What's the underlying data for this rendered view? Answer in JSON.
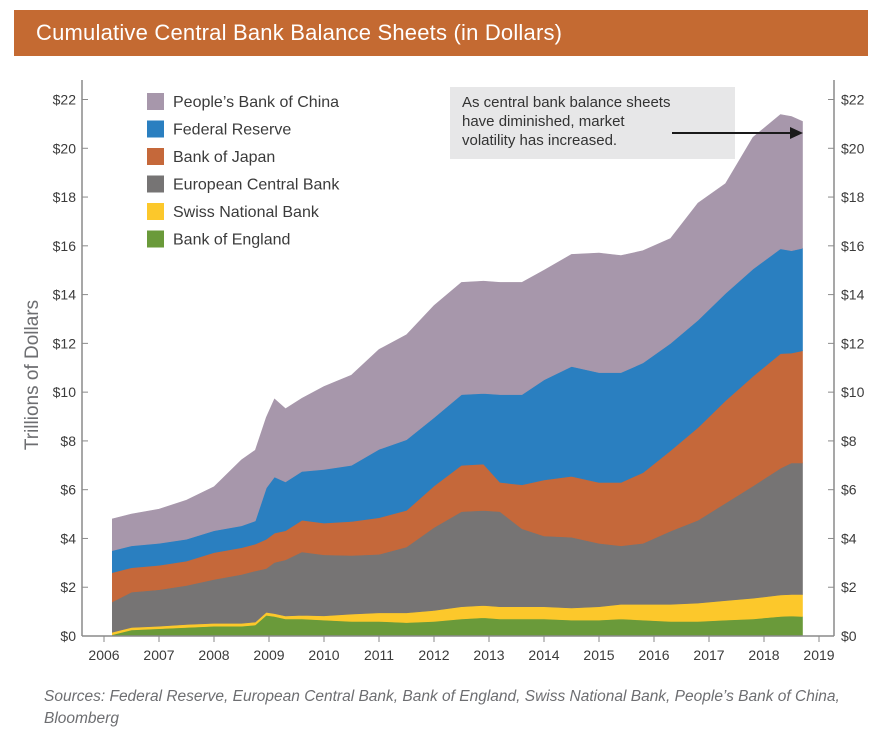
{
  "header": {
    "title": "Cumulative Central Bank Balance Sheets (in Dollars)"
  },
  "footer": {
    "sources": "Sources: Federal Reserve, European Central Bank, Bank of England, Swiss National Bank, People’s Bank of China, Bloomberg"
  },
  "colors": {
    "title_bar": "#c46a32",
    "pboc": "#a797ab",
    "fed": "#2a7fc0",
    "boj": "#c5683a",
    "ecb": "#767474",
    "snb": "#fcc82b",
    "boe": "#6a9a3a"
  },
  "chart_data": {
    "type": "area",
    "stacked": true,
    "title": "Cumulative Central Bank Balance Sheets (in Dollars)",
    "ylabel": "Trillions of Dollars",
    "xlabel": "",
    "xlim": [
      2006,
      2019
    ],
    "ylim": [
      0,
      22.8
    ],
    "legend_position": "top-left",
    "x_ticks": [
      "2006",
      "2007",
      "2008",
      "2009",
      "2010",
      "2011",
      "2012",
      "2013",
      "2014",
      "2015",
      "2016",
      "2017",
      "2018",
      "2019"
    ],
    "y_ticks_left": [
      "$0",
      "$2",
      "$4",
      "$6",
      "$8",
      "$10",
      "$12",
      "$14",
      "$16",
      "$18",
      "$20",
      "$22"
    ],
    "y_ticks_right": [
      "$0",
      "$2",
      "$4",
      "$6",
      "$8",
      "$10",
      "$12",
      "$14",
      "$16",
      "$18",
      "$20",
      "$22"
    ],
    "x": [
      2006.15,
      2006.5,
      2007,
      2007.5,
      2008,
      2008.5,
      2008.75,
      2008.95,
      2009.1,
      2009.3,
      2009.6,
      2010,
      2010.5,
      2011,
      2011.5,
      2012,
      2012.5,
      2012.9,
      2013.2,
      2013.6,
      2014,
      2014.5,
      2015,
      2015.4,
      2015.8,
      2016.3,
      2016.8,
      2017.3,
      2017.8,
      2018.3,
      2018.5,
      2018.7
    ],
    "series": [
      {
        "name": "Bank of England",
        "values": [
          0.05,
          0.25,
          0.3,
          0.35,
          0.4,
          0.4,
          0.45,
          0.85,
          0.8,
          0.7,
          0.7,
          0.65,
          0.6,
          0.6,
          0.55,
          0.6,
          0.7,
          0.75,
          0.7,
          0.7,
          0.7,
          0.65,
          0.65,
          0.7,
          0.65,
          0.6,
          0.6,
          0.65,
          0.7,
          0.8,
          0.82,
          0.8
        ]
      },
      {
        "name": "Swiss National Bank",
        "values": [
          0.1,
          0.1,
          0.1,
          0.12,
          0.12,
          0.12,
          0.12,
          0.12,
          0.12,
          0.12,
          0.15,
          0.18,
          0.3,
          0.35,
          0.4,
          0.45,
          0.5,
          0.5,
          0.5,
          0.5,
          0.5,
          0.5,
          0.55,
          0.6,
          0.65,
          0.7,
          0.75,
          0.8,
          0.85,
          0.88,
          0.88,
          0.9
        ]
      },
      {
        "name": "European Central Bank",
        "values": [
          1.25,
          1.45,
          1.5,
          1.6,
          1.8,
          2.0,
          2.1,
          1.8,
          2.1,
          2.3,
          2.6,
          2.5,
          2.4,
          2.4,
          2.7,
          3.4,
          3.9,
          3.9,
          3.9,
          3.2,
          2.9,
          2.9,
          2.6,
          2.4,
          2.5,
          3.0,
          3.4,
          4.0,
          4.6,
          5.2,
          5.4,
          5.4
        ]
      },
      {
        "name": "Bank of Japan",
        "values": [
          1.2,
          1.0,
          1.0,
          1.0,
          1.1,
          1.1,
          1.1,
          1.2,
          1.2,
          1.2,
          1.3,
          1.3,
          1.4,
          1.5,
          1.5,
          1.7,
          1.9,
          1.9,
          1.2,
          1.8,
          2.3,
          2.5,
          2.5,
          2.6,
          2.9,
          3.3,
          3.8,
          4.2,
          4.5,
          4.7,
          4.5,
          4.6
        ]
      },
      {
        "name": "Federal Reserve",
        "values": [
          0.9,
          0.9,
          0.9,
          0.9,
          0.9,
          0.9,
          0.95,
          2.1,
          2.3,
          2.0,
          2.0,
          2.2,
          2.3,
          2.8,
          2.9,
          2.8,
          2.9,
          2.9,
          3.6,
          3.7,
          4.1,
          4.5,
          4.5,
          4.5,
          4.5,
          4.4,
          4.4,
          4.4,
          4.4,
          4.3,
          4.2,
          4.2
        ]
      },
      {
        "name": "People’s Bank of China",
        "values": [
          1.3,
          1.3,
          1.4,
          1.6,
          1.8,
          2.7,
          2.9,
          2.9,
          3.2,
          3.0,
          3.0,
          3.4,
          3.7,
          4.1,
          4.3,
          4.6,
          4.6,
          4.6,
          4.6,
          4.6,
          4.5,
          4.6,
          4.9,
          4.8,
          4.6,
          4.3,
          4.8,
          4.5,
          5.4,
          5.5,
          5.5,
          5.2
        ]
      }
    ],
    "annotation": {
      "text_lines": [
        "As central bank balance sheets",
        "have diminished, market",
        "volatility has increased."
      ]
    }
  }
}
